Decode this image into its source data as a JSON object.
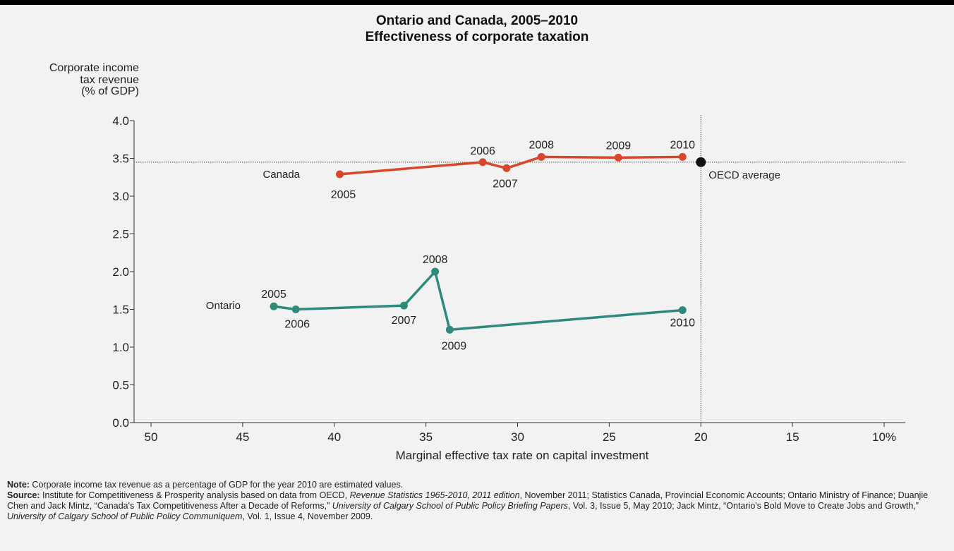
{
  "chart_data": {
    "type": "line",
    "title": "Ontario and Canada, 2005–2010",
    "subtitle": "Effectiveness of corporate taxation",
    "ylabel_lines": [
      "Corporate income",
      "tax revenue",
      "(% of GDP)"
    ],
    "xlabel": "Marginal effective tax rate on capital investment",
    "x_reversed": true,
    "xlim": [
      50,
      7.5
    ],
    "ylim": [
      0,
      4.0
    ],
    "x_ticks": [
      50,
      45,
      40,
      35,
      30,
      25,
      20,
      15,
      10
    ],
    "x_tick_labels": [
      "50",
      "45",
      "40",
      "35",
      "30",
      "25",
      "20",
      "15",
      "10%"
    ],
    "y_ticks": [
      0.0,
      0.5,
      1.0,
      1.5,
      2.0,
      2.5,
      3.0,
      3.5,
      4.0
    ],
    "y_tick_labels": [
      "0.0",
      "0.5",
      "1.0",
      "1.5",
      "2.0",
      "2.5",
      "3.0",
      "3.5",
      "4.0"
    ],
    "grid": false,
    "series": [
      {
        "name": "Canada",
        "color": "#d9472b",
        "points": [
          {
            "year": "2005",
            "x": 39.7,
            "y": 3.29
          },
          {
            "year": "2006",
            "x": 31.9,
            "y": 3.45
          },
          {
            "year": "2007",
            "x": 30.6,
            "y": 3.37
          },
          {
            "year": "2008",
            "x": 28.7,
            "y": 3.52
          },
          {
            "year": "2009",
            "x": 24.5,
            "y": 3.51
          },
          {
            "year": "2010",
            "x": 21.0,
            "y": 3.52
          }
        ]
      },
      {
        "name": "Ontario",
        "color": "#2e8a7b",
        "points": [
          {
            "year": "2005",
            "x": 43.3,
            "y": 1.54
          },
          {
            "year": "2006",
            "x": 42.1,
            "y": 1.5
          },
          {
            "year": "2007",
            "x": 36.2,
            "y": 1.55
          },
          {
            "year": "2008",
            "x": 34.5,
            "y": 2.0
          },
          {
            "year": "2009",
            "x": 33.7,
            "y": 1.23
          },
          {
            "year": "2010",
            "x": 21.0,
            "y": 1.49
          }
        ]
      }
    ],
    "reference_point": {
      "label": "OECD average",
      "x": 20.0,
      "y": 3.45,
      "color": "#111111"
    }
  },
  "notes": {
    "note_label": "Note:",
    "note_text": " Corporate income tax revenue as a percentage of GDP for the year 2010 are estimated values.",
    "source_label": "Source:",
    "source_a": " Institute for Competitiveness & Prosperity analysis based on  data from OECD, ",
    "source_b_italic": "Revenue Statistics 1965-2010, 2011 edition",
    "source_c": ", November 2011; Statistics Canada, Provincial Economic Accounts; Ontario Ministry of Finance; Duanjie Chen and Jack Mintz, “Canada's Tax Competitiveness After a Decade of Reforms,” ",
    "source_d_italic": "University of Calgary School of Public Policy Briefing Papers",
    "source_e": ", Vol. 3, Issue 5, May 2010; Jack Mintz, “Ontario's Bold Move to Create Jobs and Growth,” ",
    "source_f_italic": "University of Calgary School of Public Policy Communiquem",
    "source_g": ", Vol. 1, Issue 4, November 2009."
  }
}
